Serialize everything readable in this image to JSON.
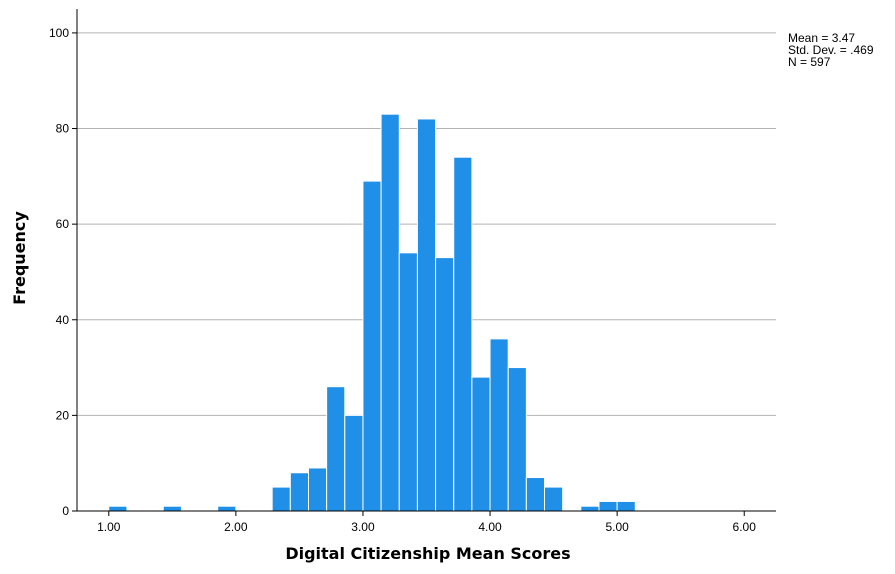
{
  "chart_data": {
    "type": "bar",
    "subtype": "histogram",
    "xlabel": "Digital Citizenship Mean Scores",
    "ylabel": "Frequency",
    "xlim": [
      0.75,
      6.25
    ],
    "ylim": [
      0,
      105
    ],
    "x_ticks": [
      1.0,
      2.0,
      3.0,
      4.0,
      5.0,
      6.0
    ],
    "x_tick_labels": [
      "1.00",
      "2.00",
      "3.00",
      "4.00",
      "5.00",
      "6.00"
    ],
    "y_ticks": [
      0,
      20,
      40,
      60,
      80,
      100
    ],
    "y_tick_labels": [
      "0",
      "20",
      "40",
      "60",
      "80",
      "100"
    ],
    "grid": "horizontal",
    "bar_color": "#1f8fe8",
    "bar_edge_color": "#ffffff",
    "bin_width": 0.14286,
    "bins": [
      {
        "x": 1.0714,
        "value": 1
      },
      {
        "x": 1.5,
        "value": 1
      },
      {
        "x": 1.9286,
        "value": 1
      },
      {
        "x": 2.3571,
        "value": 5
      },
      {
        "x": 2.5,
        "value": 8
      },
      {
        "x": 2.6429,
        "value": 9
      },
      {
        "x": 2.7857,
        "value": 26
      },
      {
        "x": 2.9286,
        "value": 20
      },
      {
        "x": 3.0714,
        "value": 69
      },
      {
        "x": 3.2143,
        "value": 83
      },
      {
        "x": 3.3571,
        "value": 54
      },
      {
        "x": 3.5,
        "value": 82
      },
      {
        "x": 3.6429,
        "value": 53
      },
      {
        "x": 3.7857,
        "value": 74
      },
      {
        "x": 3.9286,
        "value": 28
      },
      {
        "x": 4.0714,
        "value": 36
      },
      {
        "x": 4.2143,
        "value": 30
      },
      {
        "x": 4.3571,
        "value": 7
      },
      {
        "x": 4.5,
        "value": 5
      },
      {
        "x": 4.7857,
        "value": 1
      },
      {
        "x": 4.9286,
        "value": 2
      },
      {
        "x": 5.0714,
        "value": 2
      }
    ],
    "stats": {
      "mean_label": "Mean = 3.47",
      "sd_label": "Std. Dev. = .469",
      "n_label": "N = 597"
    }
  }
}
